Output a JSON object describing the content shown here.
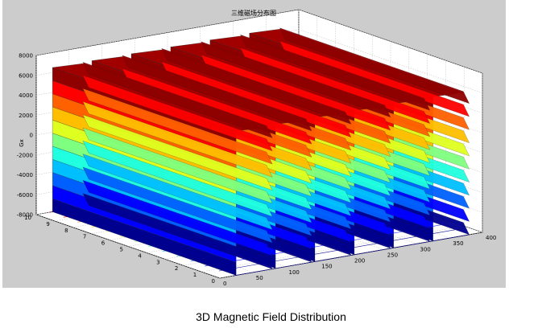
{
  "caption": "3D Magnetic Field Distribution",
  "chart_data": {
    "type": "surface",
    "title": "三维磁场分布图",
    "xlabel": "",
    "ylabel": "",
    "zlabel": "Gx",
    "x_ticks": [
      0,
      50,
      100,
      150,
      200,
      250,
      300,
      350,
      400
    ],
    "y_ticks": [
      0,
      1,
      2,
      3,
      4,
      5,
      6,
      7,
      8,
      9,
      10
    ],
    "z_ticks": [
      -8000,
      -6000,
      -4000,
      -2000,
      0,
      2000,
      4000,
      6000,
      8000
    ],
    "xlim": [
      0,
      400
    ],
    "ylim": [
      0,
      10
    ],
    "zlim": [
      -8000,
      8000
    ],
    "grid": true,
    "colormap": "jet",
    "wave_period": 60,
    "wave_count": 6,
    "peak_value": 6500,
    "trough_value": -8000,
    "colors": [
      "#00008f",
      "#0000ff",
      "#0060ff",
      "#00bfff",
      "#20ffdf",
      "#7fff7f",
      "#dfff20",
      "#ffbf00",
      "#ff6000",
      "#ff0000",
      "#8f0000"
    ]
  }
}
